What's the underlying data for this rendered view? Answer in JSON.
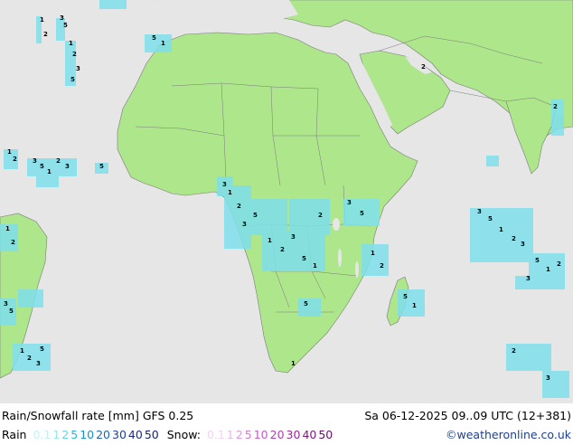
{
  "title": "Rain/Snowfall rate [mm] GFS 0.25",
  "datetime": "Sa 06-12-2025 09..09 UTC (12+381)",
  "credit": "©weatheronline.co.uk",
  "legend": {
    "rain_label": "Rain",
    "rain_values": [
      {
        "v": "0.1",
        "color": "#c6f0f5"
      },
      {
        "v": "1",
        "color": "#9ce6f0"
      },
      {
        "v": "2",
        "color": "#64d6e8"
      },
      {
        "v": "5",
        "color": "#2ab9de"
      },
      {
        "v": "10",
        "color": "#1a8fd0"
      },
      {
        "v": "20",
        "color": "#1866c0"
      },
      {
        "v": "30",
        "color": "#1a3fa8"
      },
      {
        "v": "40",
        "color": "#1a2890"
      },
      {
        "v": "50",
        "color": "#141a78"
      }
    ],
    "snow_label": "Snow:",
    "snow_values": [
      {
        "v": "0.1",
        "color": "#f3d3f3"
      },
      {
        "v": "1",
        "color": "#eab8ea"
      },
      {
        "v": "2",
        "color": "#df98df"
      },
      {
        "v": "5",
        "color": "#d27ad2"
      },
      {
        "v": "10",
        "color": "#c35bc3"
      },
      {
        "v": "20",
        "color": "#b23fb2"
      },
      {
        "v": "30",
        "color": "#9c269c"
      },
      {
        "v": "40",
        "color": "#831783"
      },
      {
        "v": "50",
        "color": "#6a0c6a"
      }
    ]
  },
  "colors": {
    "land": "#aee68c",
    "ocean": "#e6e6e6",
    "border": "#7a7a7a",
    "rain": "#7fe0ec"
  },
  "labels": [
    "1",
    "2",
    "3",
    "5"
  ]
}
